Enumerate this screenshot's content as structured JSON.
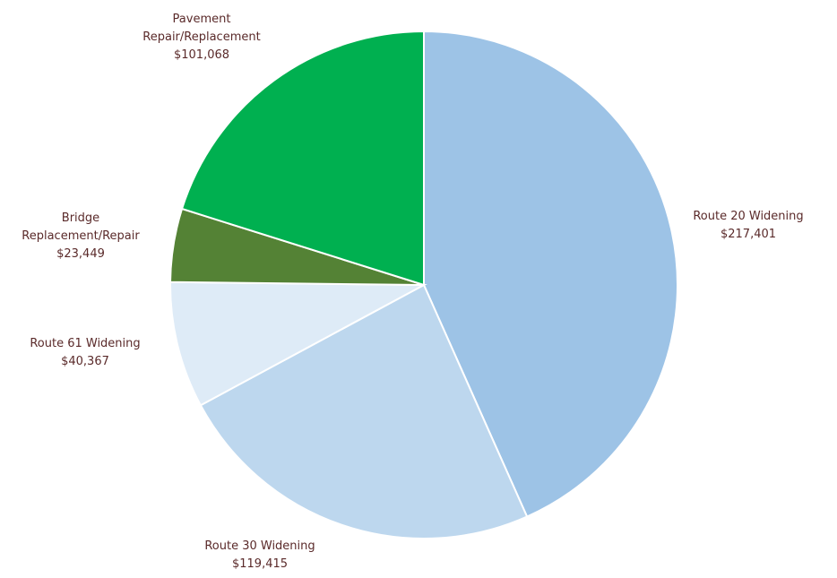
{
  "chart_data": {
    "type": "pie",
    "start_angle_deg": 0,
    "direction": "clockwise",
    "slices": [
      {
        "key": "route20",
        "label_lines": [
          "Route 20 Widening"
        ],
        "value": 217401,
        "value_label": "$217,401",
        "color": "#9dc3e6"
      },
      {
        "key": "route30",
        "label_lines": [
          "Route 30 Widening"
        ],
        "value": 119415,
        "value_label": "$119,415",
        "color": "#bdd7ee"
      },
      {
        "key": "route61",
        "label_lines": [
          "Route 61 Widening"
        ],
        "value": 40367,
        "value_label": "$40,367",
        "color": "#deebf7"
      },
      {
        "key": "bridge",
        "label_lines": [
          "Bridge",
          "Replacement/Repair"
        ],
        "value": 23449,
        "value_label": "$23,449",
        "color": "#548235"
      },
      {
        "key": "pavement",
        "label_lines": [
          "Pavement",
          "Repair/Replacement"
        ],
        "value": 101068,
        "value_label": "$101,068",
        "color": "#00b050"
      }
    ]
  }
}
